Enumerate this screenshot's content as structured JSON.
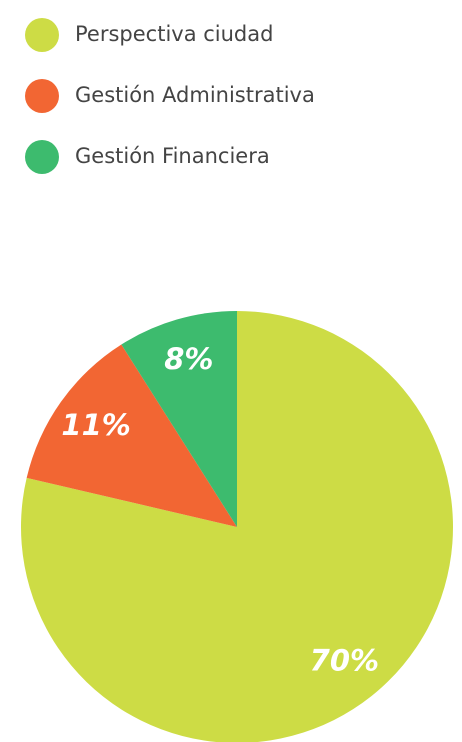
{
  "chart_data": {
    "type": "pie",
    "categories": [
      "Perspectiva ciudad",
      "Gestión Administrativa",
      "Gestión Financiera"
    ],
    "values": [
      70,
      11,
      8
    ],
    "value_labels": [
      "70%",
      "11%",
      "8%"
    ],
    "colors": [
      "#cddc45",
      "#f26633",
      "#3dbb6e"
    ],
    "legend": "top-left"
  }
}
